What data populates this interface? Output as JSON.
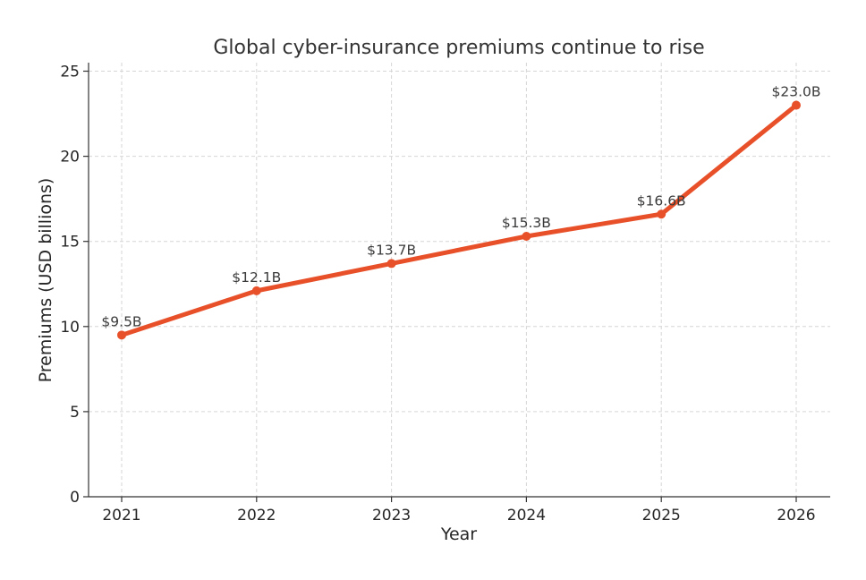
{
  "chart_data": {
    "type": "line",
    "title": "Global cyber-insurance premiums continue to rise",
    "xlabel": "Year",
    "ylabel": "Premiums (USD billions)",
    "categories": [
      "2021",
      "2022",
      "2023",
      "2024",
      "2025",
      "2026"
    ],
    "series": [
      {
        "values": [
          9.5,
          12.1,
          13.7,
          15.3,
          16.6,
          23.0
        ],
        "data_labels": [
          "$9.5B",
          "$12.1B",
          "$13.7B",
          "$15.3B",
          "$16.6B",
          "$23.0B"
        ],
        "color": "#e8502a"
      }
    ],
    "ylim": [
      0,
      25.5
    ],
    "yticks": [
      0,
      5,
      10,
      15,
      20,
      25
    ],
    "grid": true
  }
}
